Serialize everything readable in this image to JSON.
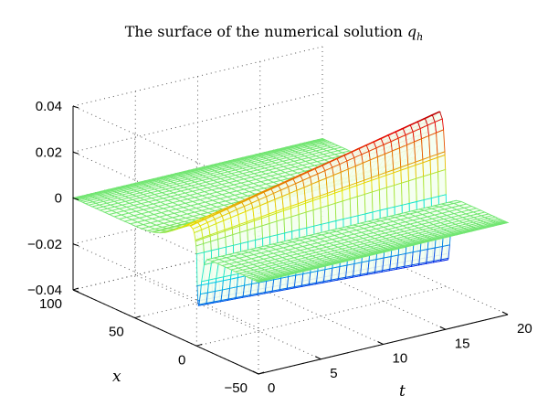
{
  "chart_data": {
    "type": "surface",
    "title_main": "The surface of the numerical solution ",
    "title_var": "q",
    "title_sub": "h",
    "xlabel": "t",
    "ylabel": "x",
    "zlabel": "",
    "xlim": [
      0,
      20
    ],
    "ylim": [
      -50,
      100
    ],
    "zlim": [
      -0.04,
      0.04
    ],
    "x_ticks": [
      0,
      5,
      10,
      15,
      20
    ],
    "y_ticks": [
      -50,
      0,
      50,
      100
    ],
    "z_ticks": [
      -0.04,
      -0.02,
      0,
      0.02,
      0.04
    ],
    "x_tick_labels": [
      "0",
      "5",
      "10",
      "15",
      "20"
    ],
    "y_tick_labels": [
      "−50",
      "0",
      "50",
      "100"
    ],
    "z_tick_labels": [
      "−0.04",
      "−0.02",
      "0",
      "0.02",
      "0.04"
    ],
    "grid": true,
    "colormap": "jet",
    "surface": {
      "description_of_shape": "kink along x = 0 that grows in amplitude with t",
      "t_range": [
        0,
        20
      ],
      "x_range": [
        -50,
        100
      ],
      "peak_value_at_t_max": 0.038,
      "trough_value_at_t_max": -0.038,
      "peak_value_at_t_min": 0.012,
      "trough_value_at_t_min": -0.03,
      "background_value": 0.0,
      "ridge_x": 0
    },
    "colors": {
      "low": "#0000b0",
      "mid": "#7ff080",
      "high": "#c00000"
    }
  }
}
